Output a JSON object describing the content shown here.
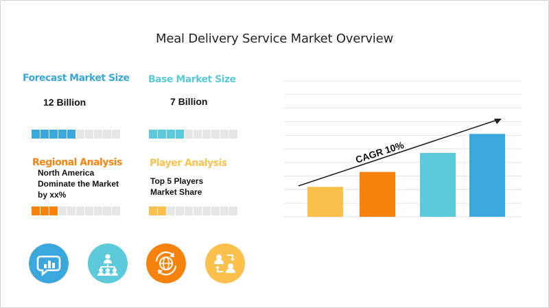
{
  "title": "Meal Delivery Service Market Overview",
  "colors": {
    "blue": "#3aa8dc",
    "teal": "#5ccadb",
    "orange": "#f7830f",
    "yellow": "#fbc14c",
    "meter_empty": "#e6e6e6",
    "grid": "#e3e3e3"
  },
  "blocks": {
    "forecast": {
      "heading": "Forecast Market Size",
      "value": "12 Billion",
      "filled": 5,
      "total": 10
    },
    "base": {
      "heading": "Base Market Size",
      "value": "7 Billion",
      "filled": 4,
      "total": 10
    },
    "regional": {
      "heading": "Regional Analysis",
      "text": [
        "North America",
        "Dominate the Market",
        "by xx%"
      ],
      "filled": 3,
      "total": 10
    },
    "player": {
      "heading": "Player Analysis",
      "text": [
        "Top 5 Players",
        "Market Share"
      ],
      "filled": 2,
      "total": 10
    }
  },
  "icons": [
    "chat-chart-icon",
    "network-people-icon",
    "globe-cycle-icon",
    "people-exchange-icon"
  ],
  "chart_data": {
    "type": "bar",
    "categories": [
      "",
      "",
      "",
      ""
    ],
    "values": [
      22,
      33,
      47,
      61
    ],
    "ylim": [
      0,
      100
    ],
    "grid": true,
    "annotation": "CAGR 10%",
    "bar_colors": [
      "#fbc14c",
      "#f7830f",
      "#5ccadb",
      "#3aa8dc"
    ]
  }
}
